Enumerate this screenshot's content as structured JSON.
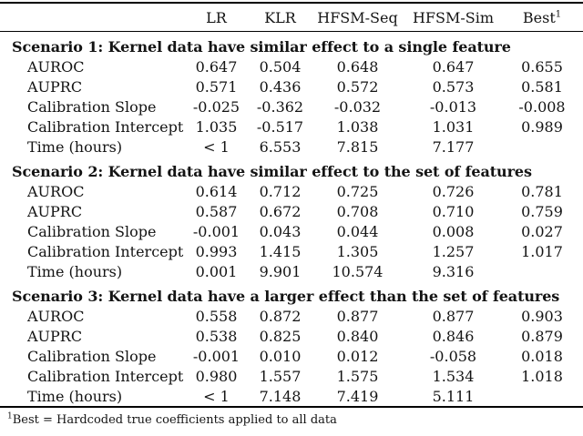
{
  "table": {
    "header": {
      "labels": [
        "LR",
        "KLR",
        "HFSM-Seq",
        "HFSM-Sim",
        "Best"
      ],
      "best_superscript": "1"
    },
    "sections": [
      {
        "title": "Scenario 1: Kernel data have similar effect to a single feature",
        "rows": [
          {
            "label": "AUROC",
            "values": [
              "0.647",
              "0.504",
              "0.648",
              "0.647",
              "0.655"
            ]
          },
          {
            "label": "AUPRC",
            "values": [
              "0.571",
              "0.436",
              "0.572",
              "0.573",
              "0.581"
            ]
          },
          {
            "label": "Calibration Slope",
            "values": [
              "-0.025",
              "-0.362",
              "-0.032",
              "-0.013",
              "-0.008"
            ]
          },
          {
            "label": "Calibration Intercept",
            "values": [
              "1.035",
              "-0.517",
              "1.038",
              "1.031",
              "0.989"
            ]
          },
          {
            "label": "Time (hours)",
            "values": [
              "< 1",
              "6.553",
              "7.815",
              "7.177",
              ""
            ]
          }
        ]
      },
      {
        "title": "Scenario 2: Kernel data have similar effect to the set of features",
        "rows": [
          {
            "label": "AUROC",
            "values": [
              "0.614",
              "0.712",
              "0.725",
              "0.726",
              "0.781"
            ]
          },
          {
            "label": "AUPRC",
            "values": [
              "0.587",
              "0.672",
              "0.708",
              "0.710",
              "0.759"
            ]
          },
          {
            "label": "Calibration Slope",
            "values": [
              "-0.001",
              "0.043",
              "0.044",
              "0.008",
              "0.027"
            ]
          },
          {
            "label": "Calibration Intercept",
            "values": [
              "0.993",
              "1.415",
              "1.305",
              "1.257",
              "1.017"
            ]
          },
          {
            "label": "Time (hours)",
            "values": [
              "0.001",
              "9.901",
              "10.574",
              "9.316",
              ""
            ]
          }
        ]
      },
      {
        "title": "Scenario 3: Kernel data have a larger effect than the set of features",
        "rows": [
          {
            "label": "AUROC",
            "values": [
              "0.558",
              "0.872",
              "0.877",
              "0.877",
              "0.903"
            ]
          },
          {
            "label": "AUPRC",
            "values": [
              "0.538",
              "0.825",
              "0.840",
              "0.846",
              "0.879"
            ]
          },
          {
            "label": "Calibration Slope",
            "values": [
              "-0.001",
              "0.010",
              "0.012",
              "-0.058",
              "0.018"
            ]
          },
          {
            "label": "Calibration Intercept",
            "values": [
              "0.980",
              "1.557",
              "1.575",
              "1.534",
              "1.018"
            ]
          },
          {
            "label": "Time (hours)",
            "values": [
              "< 1",
              "7.148",
              "7.419",
              "5.111",
              ""
            ]
          }
        ]
      }
    ],
    "footnote": {
      "marker": "1",
      "text": "Best = Hardcoded true coefficients applied to all data"
    }
  }
}
